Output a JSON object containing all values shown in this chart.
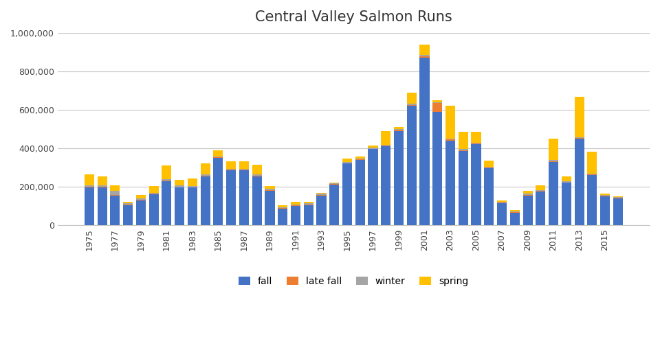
{
  "title": "Central Valley Salmon Runs",
  "years": [
    1975,
    1976,
    1977,
    1978,
    1979,
    1980,
    1981,
    1982,
    1983,
    1984,
    1985,
    1986,
    1987,
    1988,
    1989,
    1990,
    1991,
    1992,
    1993,
    1994,
    1995,
    1996,
    1997,
    1998,
    1999,
    2000,
    2001,
    2002,
    2003,
    2004,
    2005,
    2006,
    2007,
    2008,
    2009,
    2010,
    2011,
    2012,
    2013,
    2014,
    2015,
    2016
  ],
  "fall": [
    197000,
    197000,
    155000,
    105000,
    130000,
    160000,
    230000,
    195000,
    195000,
    255000,
    350000,
    285000,
    285000,
    255000,
    180000,
    85000,
    100000,
    105000,
    155000,
    210000,
    320000,
    340000,
    395000,
    410000,
    490000,
    620000,
    870000,
    590000,
    440000,
    385000,
    420000,
    295000,
    115000,
    65000,
    155000,
    175000,
    330000,
    220000,
    450000,
    260000,
    150000,
    140000
  ],
  "late_fall": [
    3000,
    3000,
    3000,
    3000,
    3000,
    3000,
    3000,
    3000,
    3000,
    3000,
    3000,
    3000,
    3000,
    3000,
    3000,
    3000,
    3000,
    3000,
    3000,
    3000,
    3000,
    3000,
    3000,
    3000,
    5000,
    5000,
    8000,
    45000,
    5000,
    5000,
    5000,
    5000,
    3000,
    3000,
    3000,
    3000,
    3000,
    3000,
    3000,
    3000,
    3000,
    3000
  ],
  "winter": [
    8000,
    8000,
    20000,
    5000,
    5000,
    5000,
    8000,
    8000,
    5000,
    5000,
    5000,
    5000,
    5000,
    5000,
    5000,
    5000,
    5000,
    5000,
    5000,
    5000,
    5000,
    5000,
    5000,
    5000,
    5000,
    5000,
    5000,
    5000,
    5000,
    5000,
    5000,
    5000,
    5000,
    5000,
    5000,
    5000,
    5000,
    5000,
    5000,
    5000,
    5000,
    5000
  ],
  "spring": [
    55000,
    45000,
    30000,
    10000,
    20000,
    35000,
    70000,
    30000,
    40000,
    60000,
    30000,
    40000,
    40000,
    50000,
    15000,
    10000,
    15000,
    10000,
    5000,
    5000,
    20000,
    10000,
    10000,
    70000,
    10000,
    60000,
    55000,
    10000,
    170000,
    90000,
    55000,
    30000,
    5000,
    5000,
    15000,
    25000,
    110000,
    25000,
    210000,
    115000,
    5000,
    3000
  ],
  "colors": {
    "fall": "#4472C4",
    "late_fall": "#ED7D31",
    "winter": "#A5A5A5",
    "spring": "#FFC000"
  },
  "ylim": [
    0,
    1000000
  ],
  "yticks": [
    0,
    200000,
    400000,
    600000,
    800000,
    1000000
  ],
  "background_color": "#FFFFFF",
  "grid_color": "#C8C8C8"
}
